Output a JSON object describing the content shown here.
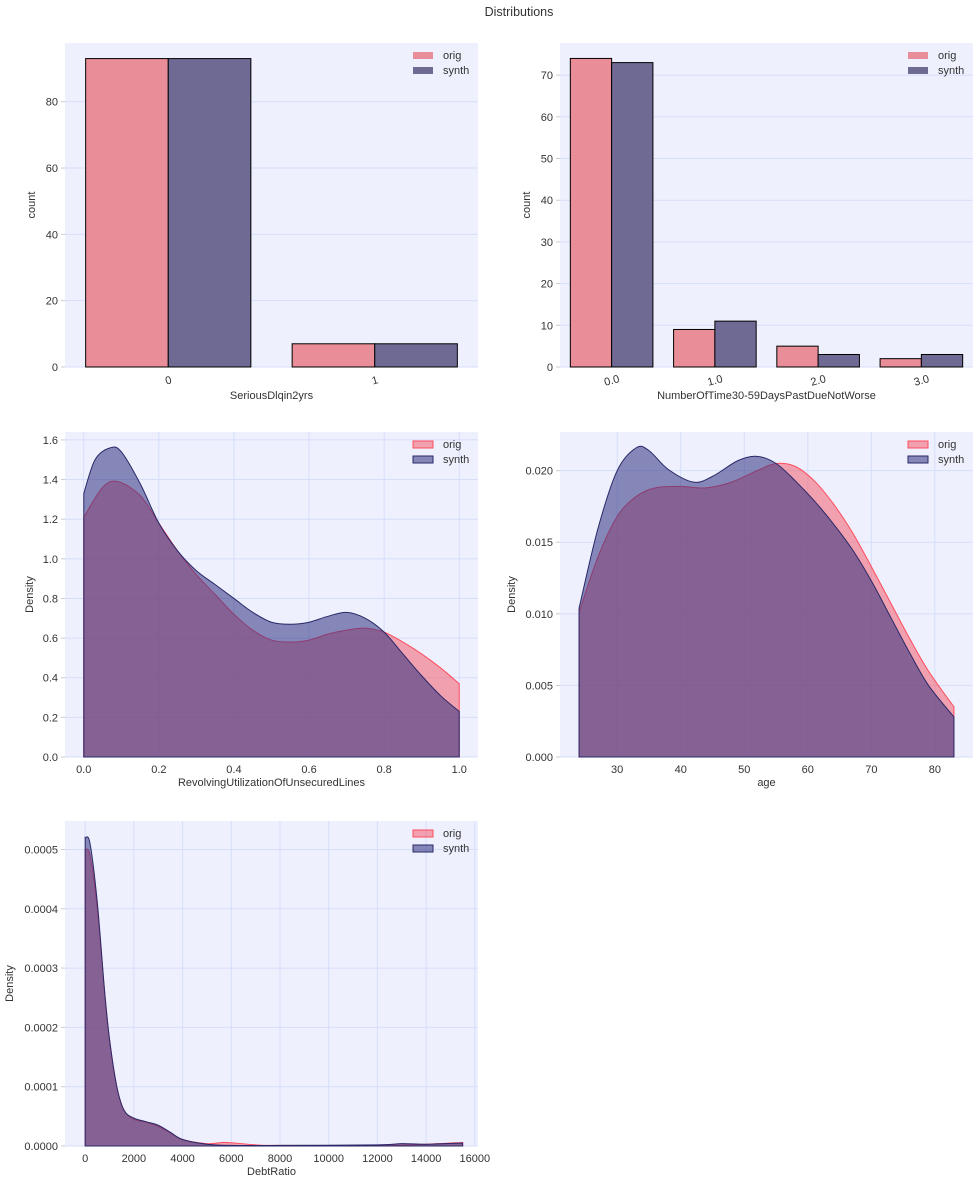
{
  "title": "Distributions",
  "colors": {
    "plot_bg": "#eef1fd",
    "grid": "#d6ddfb",
    "bar_orig": "#e98d98",
    "bar_synth": "#6e6a94",
    "kde_orig_fill": "#f25c6e",
    "kde_orig_line": "#ff4d5e",
    "kde_synth_fill": "#30307f",
    "kde_synth_line": "#2a2868"
  },
  "chart_data": [
    {
      "type": "bar",
      "xlabel": "SeriousDlqin2yrs",
      "ylabel": "count",
      "categories": [
        "0",
        "1"
      ],
      "series": [
        {
          "name": "orig",
          "values": [
            93,
            7
          ]
        },
        {
          "name": "synth",
          "values": [
            93,
            7
          ]
        }
      ],
      "yticks": [
        0,
        20,
        40,
        60,
        80
      ],
      "ylim": [
        0,
        97.7
      ],
      "xlim": [
        -0.5,
        1.5
      ],
      "grid": "horizontal",
      "legend": "top-right",
      "tick_rotation": 15
    },
    {
      "type": "bar",
      "xlabel": "NumberOfTime30-59DaysPastDueNotWorse",
      "ylabel": "count",
      "categories": [
        "0.0",
        "1.0",
        "2.0",
        "3.0"
      ],
      "series": [
        {
          "name": "orig",
          "values": [
            74,
            9,
            5,
            2
          ]
        },
        {
          "name": "synth",
          "values": [
            73,
            11,
            3,
            3
          ]
        }
      ],
      "yticks": [
        0,
        10,
        20,
        30,
        40,
        50,
        60,
        70
      ],
      "ylim": [
        0,
        77.7
      ],
      "xlim": [
        -0.5,
        3.5
      ],
      "grid": "horizontal",
      "legend": "top-right",
      "tick_rotation": 15
    },
    {
      "type": "area",
      "xlabel": "RevolvingUtilizationOfUnsecuredLines",
      "ylabel": "Density",
      "xticks": [
        "0.0",
        "0.2",
        "0.4",
        "0.6",
        "0.8",
        "1.0"
      ],
      "yticks": [
        "0.0",
        "0.2",
        "0.4",
        "0.6",
        "0.8",
        "1.0",
        "1.2",
        "1.4",
        "1.6"
      ],
      "xlim": [
        -0.05,
        1.05
      ],
      "ylim": [
        0,
        1.64
      ],
      "grid": "both",
      "legend": "top-right",
      "series": [
        {
          "name": "orig",
          "x": [
            0,
            0.05,
            0.09,
            0.15,
            0.2,
            0.25,
            0.3,
            0.35,
            0.4,
            0.45,
            0.5,
            0.55,
            0.6,
            0.65,
            0.7,
            0.75,
            0.8,
            0.85,
            0.9,
            0.95,
            1.0
          ],
          "y": [
            1.21,
            1.36,
            1.39,
            1.32,
            1.18,
            1.04,
            0.92,
            0.82,
            0.72,
            0.64,
            0.59,
            0.58,
            0.59,
            0.62,
            0.64,
            0.65,
            0.63,
            0.58,
            0.52,
            0.45,
            0.37
          ]
        },
        {
          "name": "synth",
          "x": [
            0,
            0.03,
            0.07,
            0.1,
            0.15,
            0.2,
            0.25,
            0.3,
            0.35,
            0.4,
            0.45,
            0.5,
            0.55,
            0.6,
            0.65,
            0.7,
            0.75,
            0.8,
            0.85,
            0.9,
            0.95,
            1.0
          ],
          "y": [
            1.33,
            1.5,
            1.56,
            1.54,
            1.38,
            1.18,
            1.04,
            0.94,
            0.87,
            0.8,
            0.73,
            0.68,
            0.67,
            0.68,
            0.71,
            0.73,
            0.7,
            0.63,
            0.52,
            0.41,
            0.31,
            0.23
          ]
        }
      ]
    },
    {
      "type": "area",
      "xlabel": "age",
      "ylabel": "Density",
      "xticks": [
        "30",
        "40",
        "50",
        "60",
        "70",
        "80"
      ],
      "yticks": [
        "0.000",
        "0.005",
        "0.010",
        "0.015",
        "0.020"
      ],
      "xlim": [
        21,
        86
      ],
      "ylim": [
        0,
        0.0227
      ],
      "grid": "both",
      "legend": "top-right",
      "series": [
        {
          "name": "orig",
          "x": [
            24,
            27,
            30,
            33,
            36,
            40,
            44,
            48,
            52,
            55,
            58,
            61,
            64,
            67,
            70,
            73,
            76,
            79,
            83
          ],
          "y": [
            0.0101,
            0.014,
            0.0168,
            0.0182,
            0.0188,
            0.0189,
            0.0188,
            0.0192,
            0.02,
            0.0205,
            0.0203,
            0.0193,
            0.0177,
            0.0157,
            0.0133,
            0.0108,
            0.0083,
            0.006,
            0.0035
          ]
        },
        {
          "name": "synth",
          "x": [
            24,
            27,
            30,
            33,
            35,
            38,
            42,
            45,
            49,
            52,
            55,
            58,
            61,
            64,
            67,
            70,
            73,
            76,
            79,
            83
          ],
          "y": [
            0.0104,
            0.016,
            0.02,
            0.0216,
            0.0214,
            0.0201,
            0.0192,
            0.0196,
            0.0207,
            0.021,
            0.0205,
            0.0193,
            0.0179,
            0.0163,
            0.0145,
            0.0123,
            0.0098,
            0.0073,
            0.005,
            0.0028
          ]
        }
      ]
    },
    {
      "type": "area",
      "xlabel": "DebtRatio",
      "ylabel": "Density",
      "xticks": [
        "0",
        "2000",
        "4000",
        "6000",
        "8000",
        "10000",
        "12000",
        "14000",
        "16000"
      ],
      "yticks": [
        "0.0000",
        "0.0001",
        "0.0002",
        "0.0003",
        "0.0004",
        "0.0005"
      ],
      "xlim": [
        -828,
        16130
      ],
      "ylim": [
        0,
        0.000548
      ],
      "grid": "both",
      "legend": "top-right",
      "series": [
        {
          "name": "orig",
          "x": [
            0,
            200,
            500,
            800,
            1000,
            1300,
            1600,
            2000,
            2500,
            3000,
            3500,
            4000,
            5000,
            5800,
            7000,
            8000,
            12000,
            14000,
            15500
          ],
          "y": [
            0.0005,
            0.00049,
            0.0004,
            0.00026,
            0.00018,
            0.0001,
            6e-05,
            4.5e-05,
            4e-05,
            3.3e-05,
            2.2e-05,
            1.1e-05,
            4e-06,
            6e-06,
            2e-06,
            1e-06,
            1e-06,
            3e-06,
            6e-06
          ]
        },
        {
          "name": "synth",
          "x": [
            0,
            200,
            500,
            800,
            1000,
            1300,
            1600,
            2000,
            2500,
            3000,
            3500,
            4000,
            5000,
            6000,
            8000,
            12000,
            13000,
            14000,
            15500
          ],
          "y": [
            0.00052,
            0.00051,
            0.00041,
            0.00026,
            0.00018,
            0.0001,
            6e-05,
            4.7e-05,
            4.1e-05,
            3.5e-05,
            2.3e-05,
            1.1e-05,
            3e-06,
            1e-06,
            1e-06,
            2e-06,
            4e-06,
            3e-06,
            5e-06
          ]
        }
      ]
    }
  ]
}
